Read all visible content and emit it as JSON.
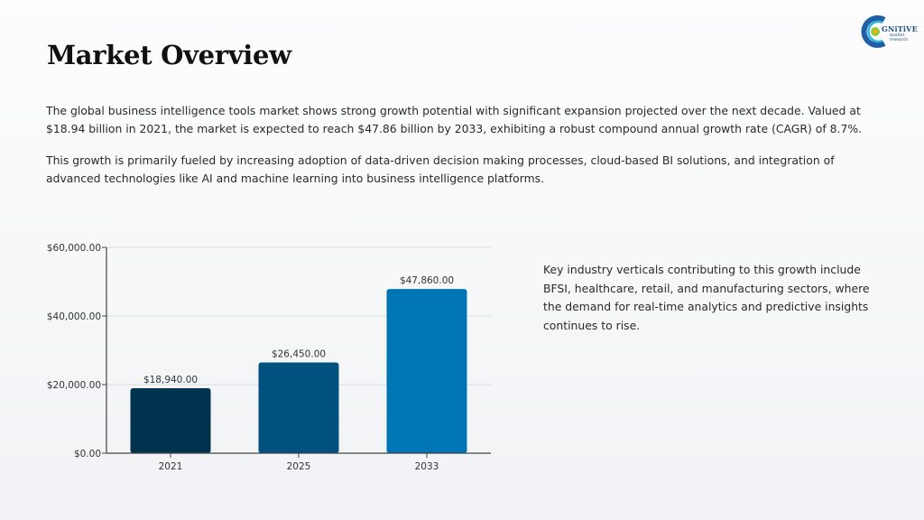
{
  "page": {
    "title": "Market Overview",
    "paragraph_1": "The global business intelligence tools market shows strong growth potential with significant expansion projected over the next decade. Valued at $18.94 billion in 2021, the market is expected to reach $47.86 billion by 2033, exhibiting a robust compound annual growth rate (CAGR) of 8.7%.",
    "paragraph_2": "This growth is primarily fueled by increasing adoption of data-driven decision making processes, cloud-based BI solutions, and integration of advanced technologies like AI and machine learning into business intelligence platforms.",
    "side_text": "Key industry verticals contributing to this growth include BFSI, healthcare, retail, and manufacturing sectors, where the demand for real-time analytics and predictive insights continues to rise."
  },
  "logo": {
    "text": "GNiTiVE",
    "subtext_1": "market",
    "subtext_2": "research"
  },
  "colors": {
    "bar_2021": "#00334e",
    "bar_2025": "#00517f",
    "bar_2033": "#0075b5",
    "grid": "#dcdcdc",
    "axis": "#444444"
  },
  "chart_data": {
    "type": "bar",
    "categories": [
      "2021",
      "2025",
      "2033"
    ],
    "values": [
      18940,
      26450,
      47860
    ],
    "data_labels": [
      "$18,940.00",
      "$26,450.00",
      "$47,860.00"
    ],
    "y_ticks": [
      0,
      20000,
      40000,
      60000
    ],
    "y_tick_labels": [
      "$0.00",
      "$20,000.00",
      "$40,000.00",
      "$60,000.00"
    ],
    "ylim": [
      0,
      60000
    ],
    "grid": true,
    "legend": "none"
  }
}
